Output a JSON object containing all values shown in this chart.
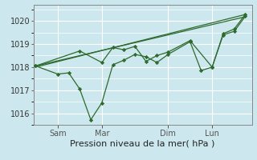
{
  "background_color": "#cce8ee",
  "grid_color": "#ffffff",
  "line_color": "#2d6a2d",
  "marker_color": "#2d6a2d",
  "x_tick_labels": [
    "Sam",
    "Mar",
    "Dim",
    "Lun"
  ],
  "x_tick_positions": [
    1,
    3,
    6,
    8
  ],
  "xlabel": "Pression niveau de la mer( hPa )",
  "ylim": [
    1015.5,
    1020.7
  ],
  "yticks": [
    1016,
    1017,
    1018,
    1019,
    1020
  ],
  "x_vlines": [
    1,
    3,
    6,
    8
  ],
  "xlim": [
    -0.1,
    9.8
  ],
  "trend1_x": [
    0,
    9.5
  ],
  "trend1_y": [
    1018.0,
    1020.28
  ],
  "trend2_x": [
    0,
    9.5
  ],
  "trend2_y": [
    1018.05,
    1020.18
  ],
  "line1_x": [
    0,
    1,
    1.5,
    2,
    2.5,
    3,
    3.5,
    4,
    4.5,
    5,
    5.5,
    6,
    7,
    7.5,
    8,
    8.5,
    9,
    9.5
  ],
  "line1_y": [
    1018.05,
    1017.7,
    1017.75,
    1017.05,
    1015.72,
    1016.45,
    1018.1,
    1018.3,
    1018.55,
    1018.45,
    1018.2,
    1018.55,
    1019.1,
    1017.85,
    1018.0,
    1019.4,
    1019.55,
    1020.2
  ],
  "line2_x": [
    0,
    2,
    3,
    3.5,
    4,
    4.5,
    5,
    5.5,
    6,
    7,
    8,
    8.5,
    9,
    9.5
  ],
  "line2_y": [
    1018.05,
    1018.7,
    1018.2,
    1018.85,
    1018.75,
    1018.9,
    1018.25,
    1018.5,
    1018.65,
    1019.15,
    1018.0,
    1019.45,
    1019.65,
    1020.28
  ],
  "xlabel_fontsize": 8,
  "ytick_fontsize": 7,
  "xtick_fontsize": 7
}
